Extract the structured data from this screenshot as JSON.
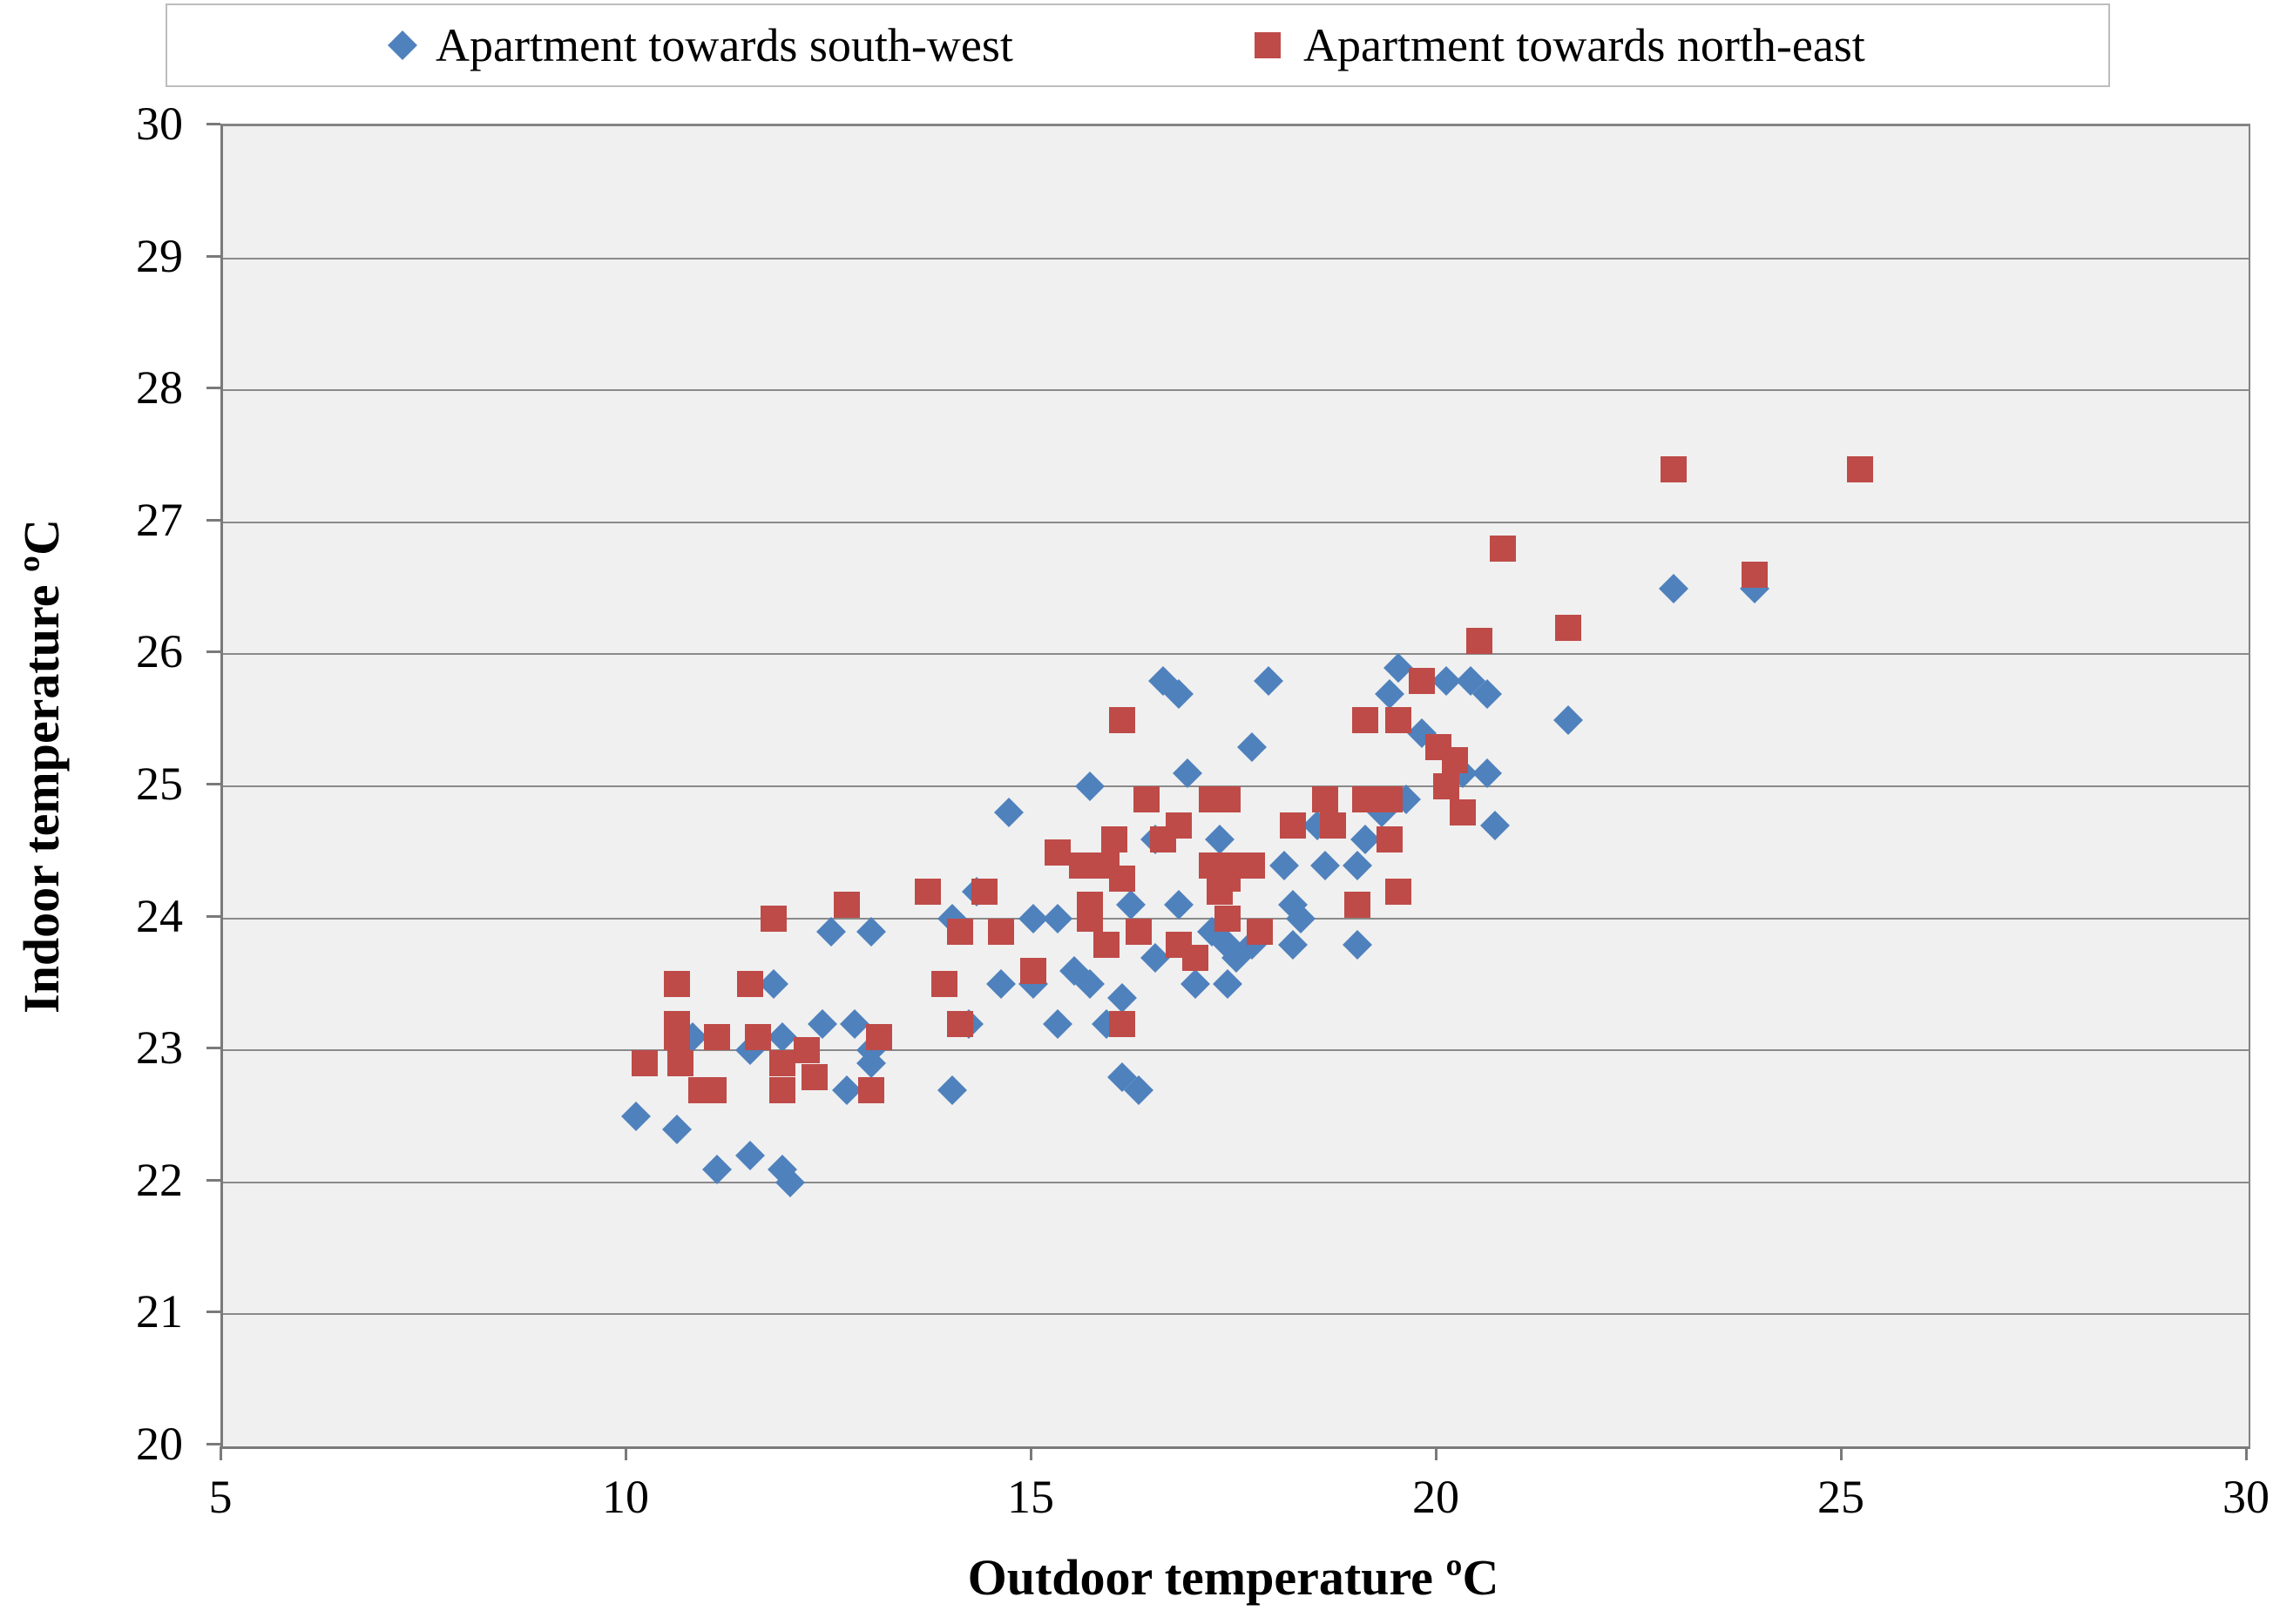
{
  "legend": {
    "item1_label": "Apartment towards south-west",
    "item2_label": "Apartment towards north-east"
  },
  "chart_data": {
    "type": "scatter",
    "title": "",
    "xlabel": "Outdoor temperature ºC",
    "ylabel": "Indoor temperature ºC",
    "x_range": [
      5,
      30
    ],
    "y_range": [
      20,
      30
    ],
    "x_ticks": [
      5,
      10,
      15,
      20,
      25,
      30
    ],
    "y_ticks": [
      20,
      21,
      22,
      23,
      24,
      25,
      26,
      27,
      28,
      29,
      30
    ],
    "grid": "horizontal",
    "legend_position": "top",
    "series": [
      {
        "name": "Apartment towards south-west",
        "marker": "diamond",
        "color": "#4f81bd",
        "points": [
          [
            11.8,
            23.5
          ],
          [
            10.8,
            23.1
          ],
          [
            11.9,
            23.1
          ],
          [
            11.5,
            23.0
          ],
          [
            10.1,
            22.5
          ],
          [
            10.6,
            22.4
          ],
          [
            11.1,
            22.1
          ],
          [
            11.5,
            22.2
          ],
          [
            11.9,
            22.1
          ],
          [
            12.0,
            22.0
          ],
          [
            12.5,
            23.9
          ],
          [
            13.0,
            23.9
          ],
          [
            12.4,
            23.2
          ],
          [
            12.8,
            23.2
          ],
          [
            13.0,
            23.0
          ],
          [
            13.0,
            22.9
          ],
          [
            12.7,
            22.7
          ],
          [
            14.0,
            22.7
          ],
          [
            14.3,
            24.2
          ],
          [
            14.7,
            24.8
          ],
          [
            15.0,
            24.0
          ],
          [
            15.3,
            24.0
          ],
          [
            15.7,
            25.0
          ],
          [
            15.3,
            23.2
          ],
          [
            15.9,
            23.2
          ],
          [
            16.5,
            23.7
          ],
          [
            15.5,
            23.6
          ],
          [
            15.7,
            23.5
          ],
          [
            14.6,
            23.5
          ],
          [
            14.2,
            23.2
          ],
          [
            16.1,
            23.4
          ],
          [
            16.1,
            22.8
          ],
          [
            16.3,
            22.7
          ],
          [
            14.0,
            24.0
          ],
          [
            15.0,
            23.5
          ],
          [
            17.3,
            24.6
          ],
          [
            18.5,
            24.7
          ],
          [
            19.6,
            24.9
          ],
          [
            19.3,
            24.8
          ],
          [
            19.1,
            24.6
          ],
          [
            20.7,
            24.7
          ],
          [
            18.1,
            24.4
          ],
          [
            18.6,
            24.4
          ],
          [
            18.2,
            24.1
          ],
          [
            18.3,
            24.0
          ],
          [
            17.2,
            23.9
          ],
          [
            17.4,
            23.8
          ],
          [
            17.7,
            23.8
          ],
          [
            17.5,
            23.7
          ],
          [
            19.0,
            23.8
          ],
          [
            17.0,
            23.5
          ],
          [
            17.4,
            23.5
          ],
          [
            16.6,
            25.8
          ],
          [
            16.8,
            25.7
          ],
          [
            17.9,
            25.8
          ],
          [
            19.5,
            25.9
          ],
          [
            19.4,
            25.7
          ],
          [
            20.1,
            25.8
          ],
          [
            20.4,
            25.8
          ],
          [
            20.6,
            25.7
          ],
          [
            19.8,
            25.4
          ],
          [
            16.9,
            25.1
          ],
          [
            17.7,
            25.3
          ],
          [
            20.3,
            25.1
          ],
          [
            20.6,
            25.1
          ],
          [
            22.9,
            26.5
          ],
          [
            23.9,
            26.5
          ],
          [
            21.6,
            25.5
          ],
          [
            16.5,
            24.6
          ],
          [
            16.2,
            24.1
          ],
          [
            16.8,
            24.1
          ],
          [
            19.0,
            24.4
          ],
          [
            18.2,
            23.8
          ]
        ]
      },
      {
        "name": "Apartment towards north-east",
        "marker": "square",
        "color": "#be4b48",
        "points": [
          [
            11.8,
            24.0
          ],
          [
            10.6,
            23.5
          ],
          [
            11.5,
            23.5
          ],
          [
            10.6,
            23.2
          ],
          [
            10.6,
            23.1
          ],
          [
            11.1,
            23.1
          ],
          [
            11.6,
            23.1
          ],
          [
            10.2,
            22.9
          ],
          [
            10.65,
            22.9
          ],
          [
            10.9,
            22.7
          ],
          [
            11.05,
            22.7
          ],
          [
            16.4,
            24.9
          ],
          [
            16.0,
            24.6
          ],
          [
            16.8,
            24.7
          ],
          [
            16.6,
            24.6
          ],
          [
            15.3,
            24.5
          ],
          [
            15.6,
            24.4
          ],
          [
            14.4,
            24.2
          ],
          [
            13.7,
            24.2
          ],
          [
            12.7,
            24.1
          ],
          [
            14.1,
            23.9
          ],
          [
            14.6,
            23.9
          ],
          [
            15.7,
            24.1
          ],
          [
            15.7,
            24.0
          ],
          [
            15.9,
            23.8
          ],
          [
            16.3,
            23.9
          ],
          [
            16.8,
            23.8
          ],
          [
            15.0,
            23.6
          ],
          [
            13.9,
            23.5
          ],
          [
            13.1,
            23.1
          ],
          [
            12.2,
            23.0
          ],
          [
            11.9,
            22.9
          ],
          [
            11.9,
            22.7
          ],
          [
            12.3,
            22.8
          ],
          [
            13.0,
            22.7
          ],
          [
            16.1,
            23.2
          ],
          [
            17.0,
            23.7
          ],
          [
            14.1,
            23.2
          ],
          [
            17.2,
            24.9
          ],
          [
            17.4,
            24.9
          ],
          [
            18.6,
            24.9
          ],
          [
            18.7,
            24.7
          ],
          [
            18.2,
            24.7
          ],
          [
            19.1,
            24.9
          ],
          [
            19.4,
            24.9
          ],
          [
            19.4,
            24.6
          ],
          [
            20.3,
            24.8
          ],
          [
            17.4,
            24.4
          ],
          [
            17.4,
            24.3
          ],
          [
            17.2,
            24.4
          ],
          [
            17.7,
            24.4
          ],
          [
            17.3,
            24.2
          ],
          [
            17.4,
            24.0
          ],
          [
            19.0,
            24.1
          ],
          [
            19.5,
            24.2
          ],
          [
            20.8,
            26.8
          ],
          [
            20.5,
            26.1
          ],
          [
            21.6,
            26.2
          ],
          [
            16.1,
            25.5
          ],
          [
            19.8,
            25.8
          ],
          [
            19.1,
            25.5
          ],
          [
            19.5,
            25.5
          ],
          [
            20.0,
            25.3
          ],
          [
            20.2,
            25.2
          ],
          [
            20.1,
            25.0
          ],
          [
            22.9,
            27.4
          ],
          [
            25.2,
            27.4
          ],
          [
            23.9,
            26.6
          ],
          [
            15.9,
            24.4
          ],
          [
            16.1,
            24.3
          ],
          [
            17.8,
            23.9
          ]
        ]
      }
    ]
  }
}
